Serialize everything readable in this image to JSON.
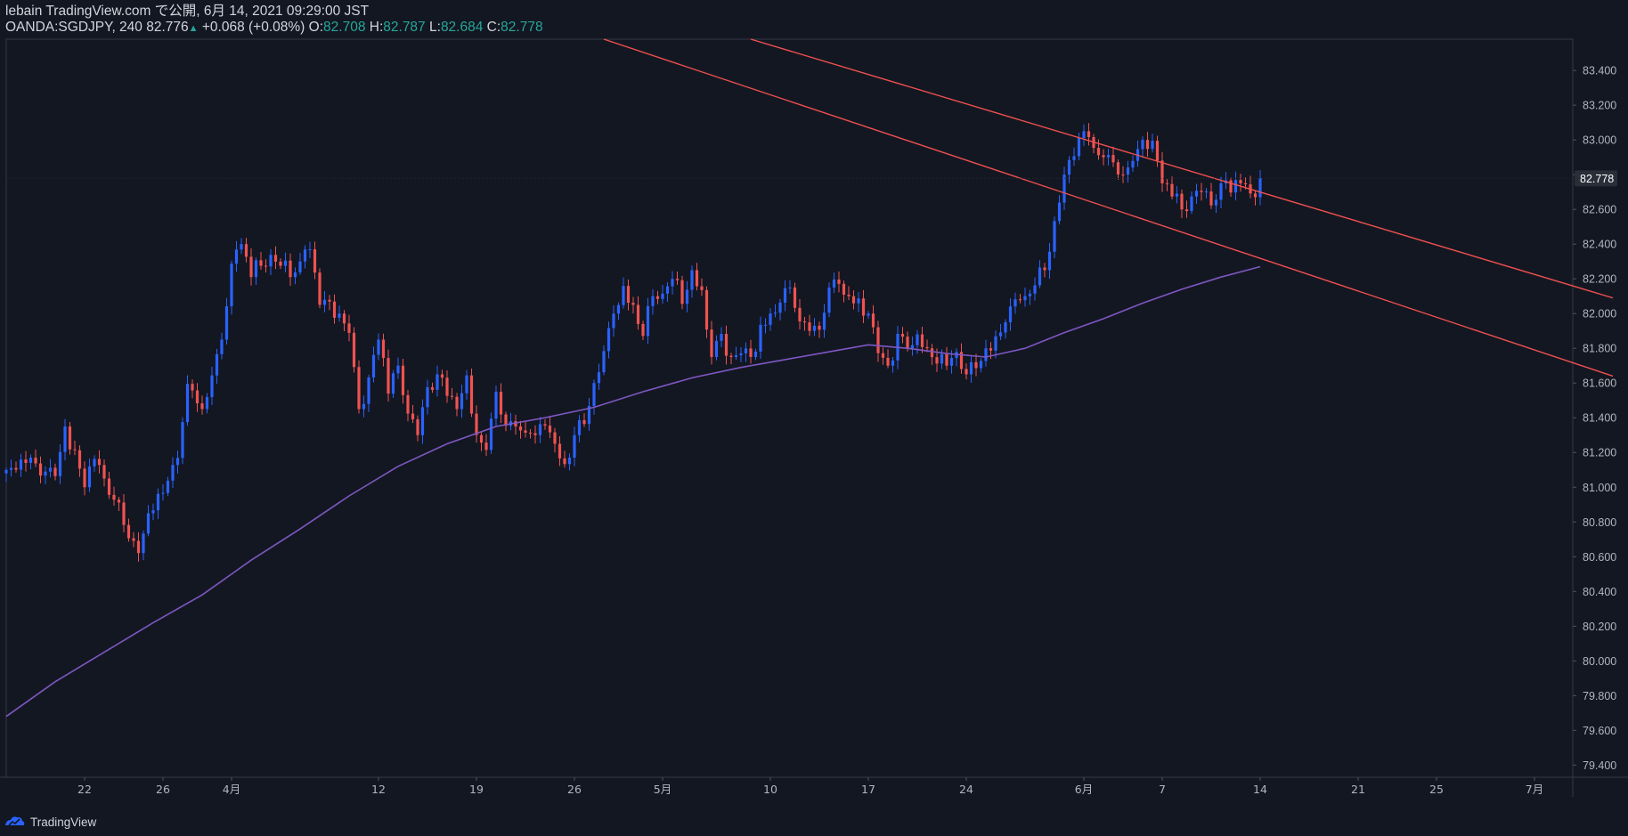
{
  "header": {
    "line1": "lebain TradingView.com で公開, 6月 14, 2021 09:29:00 JST",
    "symbol": "OANDA:SGDJPY, 240",
    "price": "82.776",
    "change_arrow": "▲",
    "change": "+0.068 (+0.08%)",
    "o_label": "O:",
    "o_value": "82.708",
    "h_label": "H:",
    "h_value": "82.787",
    "l_label": "L:",
    "l_value": "82.684",
    "c_label": "C:",
    "c_value": "82.778"
  },
  "footer": {
    "brand": "TradingView",
    "logo_icon": "tradingview-logo-icon"
  },
  "colors": {
    "background": "#131722",
    "candle_up": "#2962ff",
    "candle_down": "#ef5350",
    "ma_line": "#7e57c2",
    "trend_line": "#f0504f",
    "text": "#d1d4dc",
    "ohlc_value": "#26a69a"
  },
  "chart_data": {
    "type": "candlestick",
    "symbol": "OANDA:SGDJPY",
    "timeframe": "240",
    "y_axis": {
      "ticks": [
        "83.400",
        "83.200",
        "83.000",
        "82.800",
        "82.600",
        "82.400",
        "82.200",
        "82.000",
        "81.800",
        "81.600",
        "81.400",
        "81.200",
        "81.000",
        "80.800",
        "80.600",
        "80.400",
        "80.200",
        "80.000",
        "79.800",
        "79.600",
        "79.400"
      ],
      "range": [
        79.33,
        83.58
      ],
      "last_price_label": "82.778"
    },
    "x_axis": {
      "tick_labels": [
        "22",
        "26",
        "4月",
        "12",
        "19",
        "26",
        "5月",
        "10",
        "17",
        "24",
        "6月",
        "7",
        "14",
        "21",
        "25",
        "7月"
      ],
      "tick_index": [
        16,
        32,
        46,
        76,
        96,
        116,
        134,
        156,
        176,
        196,
        220,
        236,
        256,
        276,
        292,
        312
      ]
    },
    "price_path": [
      [
        0,
        81.1
      ],
      [
        5,
        81.15
      ],
      [
        10,
        81.05
      ],
      [
        12,
        81.35
      ],
      [
        16,
        81.0
      ],
      [
        18,
        81.15
      ],
      [
        22,
        80.95
      ],
      [
        25,
        80.7
      ],
      [
        27,
        80.65
      ],
      [
        30,
        80.9
      ],
      [
        33,
        81.0
      ],
      [
        35,
        81.2
      ],
      [
        37,
        81.55
      ],
      [
        40,
        81.45
      ],
      [
        42,
        81.6
      ],
      [
        44,
        81.85
      ],
      [
        46,
        82.25
      ],
      [
        48,
        82.4
      ],
      [
        50,
        82.25
      ],
      [
        54,
        82.3
      ],
      [
        58,
        82.25
      ],
      [
        62,
        82.35
      ],
      [
        64,
        82.05
      ],
      [
        68,
        82.0
      ],
      [
        70,
        81.85
      ],
      [
        72,
        81.45
      ],
      [
        74,
        81.6
      ],
      [
        76,
        81.85
      ],
      [
        78,
        81.55
      ],
      [
        80,
        81.7
      ],
      [
        82,
        81.45
      ],
      [
        84,
        81.3
      ],
      [
        86,
        81.55
      ],
      [
        88,
        81.65
      ],
      [
        92,
        81.45
      ],
      [
        94,
        81.6
      ],
      [
        96,
        81.3
      ],
      [
        98,
        81.2
      ],
      [
        100,
        81.55
      ],
      [
        102,
        81.35
      ],
      [
        104,
        81.35
      ],
      [
        108,
        81.3
      ],
      [
        110,
        81.4
      ],
      [
        112,
        81.25
      ],
      [
        114,
        81.1
      ],
      [
        116,
        81.3
      ],
      [
        118,
        81.4
      ],
      [
        120,
        81.6
      ],
      [
        122,
        81.75
      ],
      [
        124,
        82.0
      ],
      [
        126,
        82.15
      ],
      [
        128,
        82.05
      ],
      [
        130,
        81.9
      ],
      [
        132,
        82.1
      ],
      [
        134,
        82.15
      ],
      [
        136,
        82.2
      ],
      [
        138,
        82.1
      ],
      [
        140,
        82.25
      ],
      [
        142,
        82.15
      ],
      [
        144,
        81.75
      ],
      [
        146,
        81.85
      ],
      [
        148,
        81.75
      ],
      [
        150,
        81.8
      ],
      [
        152,
        81.75
      ],
      [
        154,
        81.9
      ],
      [
        156,
        82.0
      ],
      [
        158,
        82.1
      ],
      [
        160,
        82.15
      ],
      [
        162,
        82.0
      ],
      [
        164,
        81.9
      ],
      [
        166,
        81.95
      ],
      [
        168,
        82.15
      ],
      [
        170,
        82.2
      ],
      [
        172,
        82.1
      ],
      [
        174,
        82.05
      ],
      [
        176,
        82.0
      ],
      [
        178,
        81.8
      ],
      [
        180,
        81.7
      ],
      [
        182,
        81.85
      ],
      [
        184,
        81.8
      ],
      [
        186,
        81.9
      ],
      [
        188,
        81.8
      ],
      [
        190,
        81.75
      ],
      [
        192,
        81.7
      ],
      [
        194,
        81.8
      ],
      [
        196,
        81.65
      ],
      [
        198,
        81.7
      ],
      [
        200,
        81.8
      ],
      [
        202,
        81.85
      ],
      [
        204,
        81.95
      ],
      [
        206,
        82.05
      ],
      [
        208,
        82.1
      ],
      [
        210,
        82.2
      ],
      [
        212,
        82.25
      ],
      [
        214,
        82.5
      ],
      [
        216,
        82.8
      ],
      [
        218,
        82.95
      ],
      [
        220,
        83.05
      ],
      [
        222,
        82.95
      ],
      [
        224,
        82.9
      ],
      [
        226,
        82.85
      ],
      [
        228,
        82.8
      ],
      [
        230,
        82.85
      ],
      [
        232,
        83.0
      ],
      [
        234,
        82.95
      ],
      [
        236,
        82.75
      ],
      [
        238,
        82.7
      ],
      [
        240,
        82.6
      ],
      [
        242,
        82.65
      ],
      [
        244,
        82.7
      ],
      [
        246,
        82.65
      ],
      [
        248,
        82.75
      ],
      [
        250,
        82.7
      ],
      [
        252,
        82.75
      ],
      [
        254,
        82.65
      ],
      [
        256,
        82.78
      ]
    ],
    "moving_average": [
      [
        0,
        79.68
      ],
      [
        10,
        79.88
      ],
      [
        20,
        80.05
      ],
      [
        30,
        80.22
      ],
      [
        40,
        80.38
      ],
      [
        50,
        80.58
      ],
      [
        60,
        80.76
      ],
      [
        70,
        80.95
      ],
      [
        80,
        81.12
      ],
      [
        90,
        81.25
      ],
      [
        100,
        81.35
      ],
      [
        110,
        81.4
      ],
      [
        120,
        81.46
      ],
      [
        130,
        81.55
      ],
      [
        140,
        81.63
      ],
      [
        150,
        81.69
      ],
      [
        160,
        81.74
      ],
      [
        170,
        81.79
      ],
      [
        176,
        81.82
      ],
      [
        184,
        81.8
      ],
      [
        192,
        81.77
      ],
      [
        200,
        81.75
      ],
      [
        208,
        81.8
      ],
      [
        216,
        81.89
      ],
      [
        224,
        81.97
      ],
      [
        232,
        82.06
      ],
      [
        240,
        82.14
      ],
      [
        248,
        82.21
      ],
      [
        256,
        82.27
      ]
    ],
    "trend_lines": [
      {
        "name": "upper-channel-line",
        "x": [
          152,
          328
        ],
        "y": [
          83.58,
          82.09
        ]
      },
      {
        "name": "lower-channel-line",
        "x": [
          122,
          328
        ],
        "y": [
          83.58,
          81.64
        ]
      }
    ]
  }
}
